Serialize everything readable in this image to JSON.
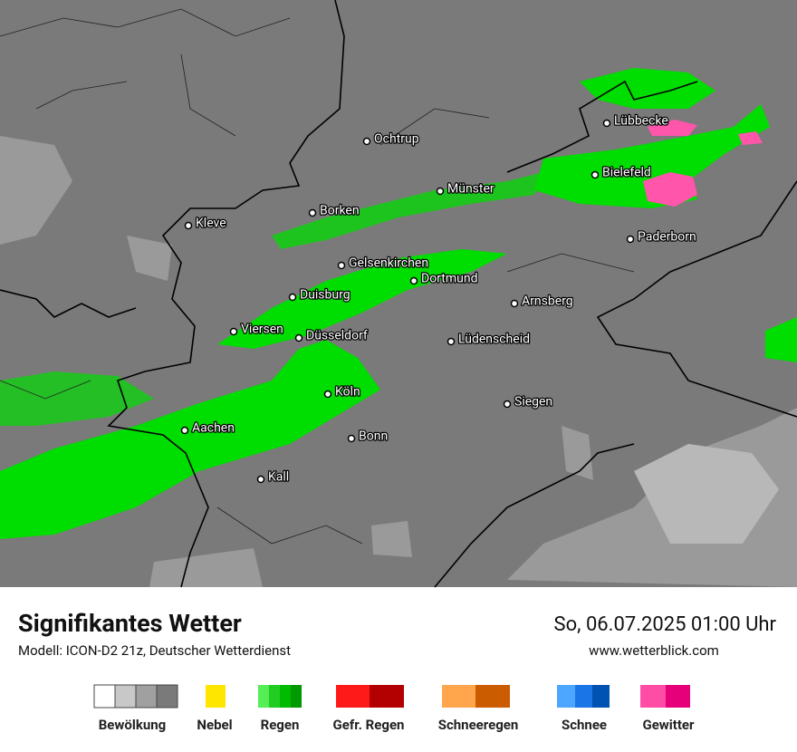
{
  "map": {
    "cities": [
      "Ochtrup",
      "Lübbecke",
      "Münster",
      "Bielefeld",
      "Borken",
      "Kleve",
      "Paderborn",
      "Gelsenkirchen",
      "Dortmund",
      "Arnsberg",
      "Duisburg",
      "Viersen",
      "Düsseldorf",
      "Lüdenscheid",
      "Köln",
      "Siegen",
      "Aachen",
      "Bonn",
      "Kall"
    ]
  },
  "footer": {
    "title": "Signifikantes Wetter",
    "subtitle": "Modell: ICON-D2 21z, Deutscher Wetterdienst",
    "datetime": "So, 06.07.2025 01:00 Uhr",
    "url": "www.wetterblick.com"
  },
  "legend": [
    "Bewölkung",
    "Nebel",
    "Regen",
    "Gefr. Regen",
    "Schneeregen",
    "Schnee",
    "Gewitter"
  ]
}
